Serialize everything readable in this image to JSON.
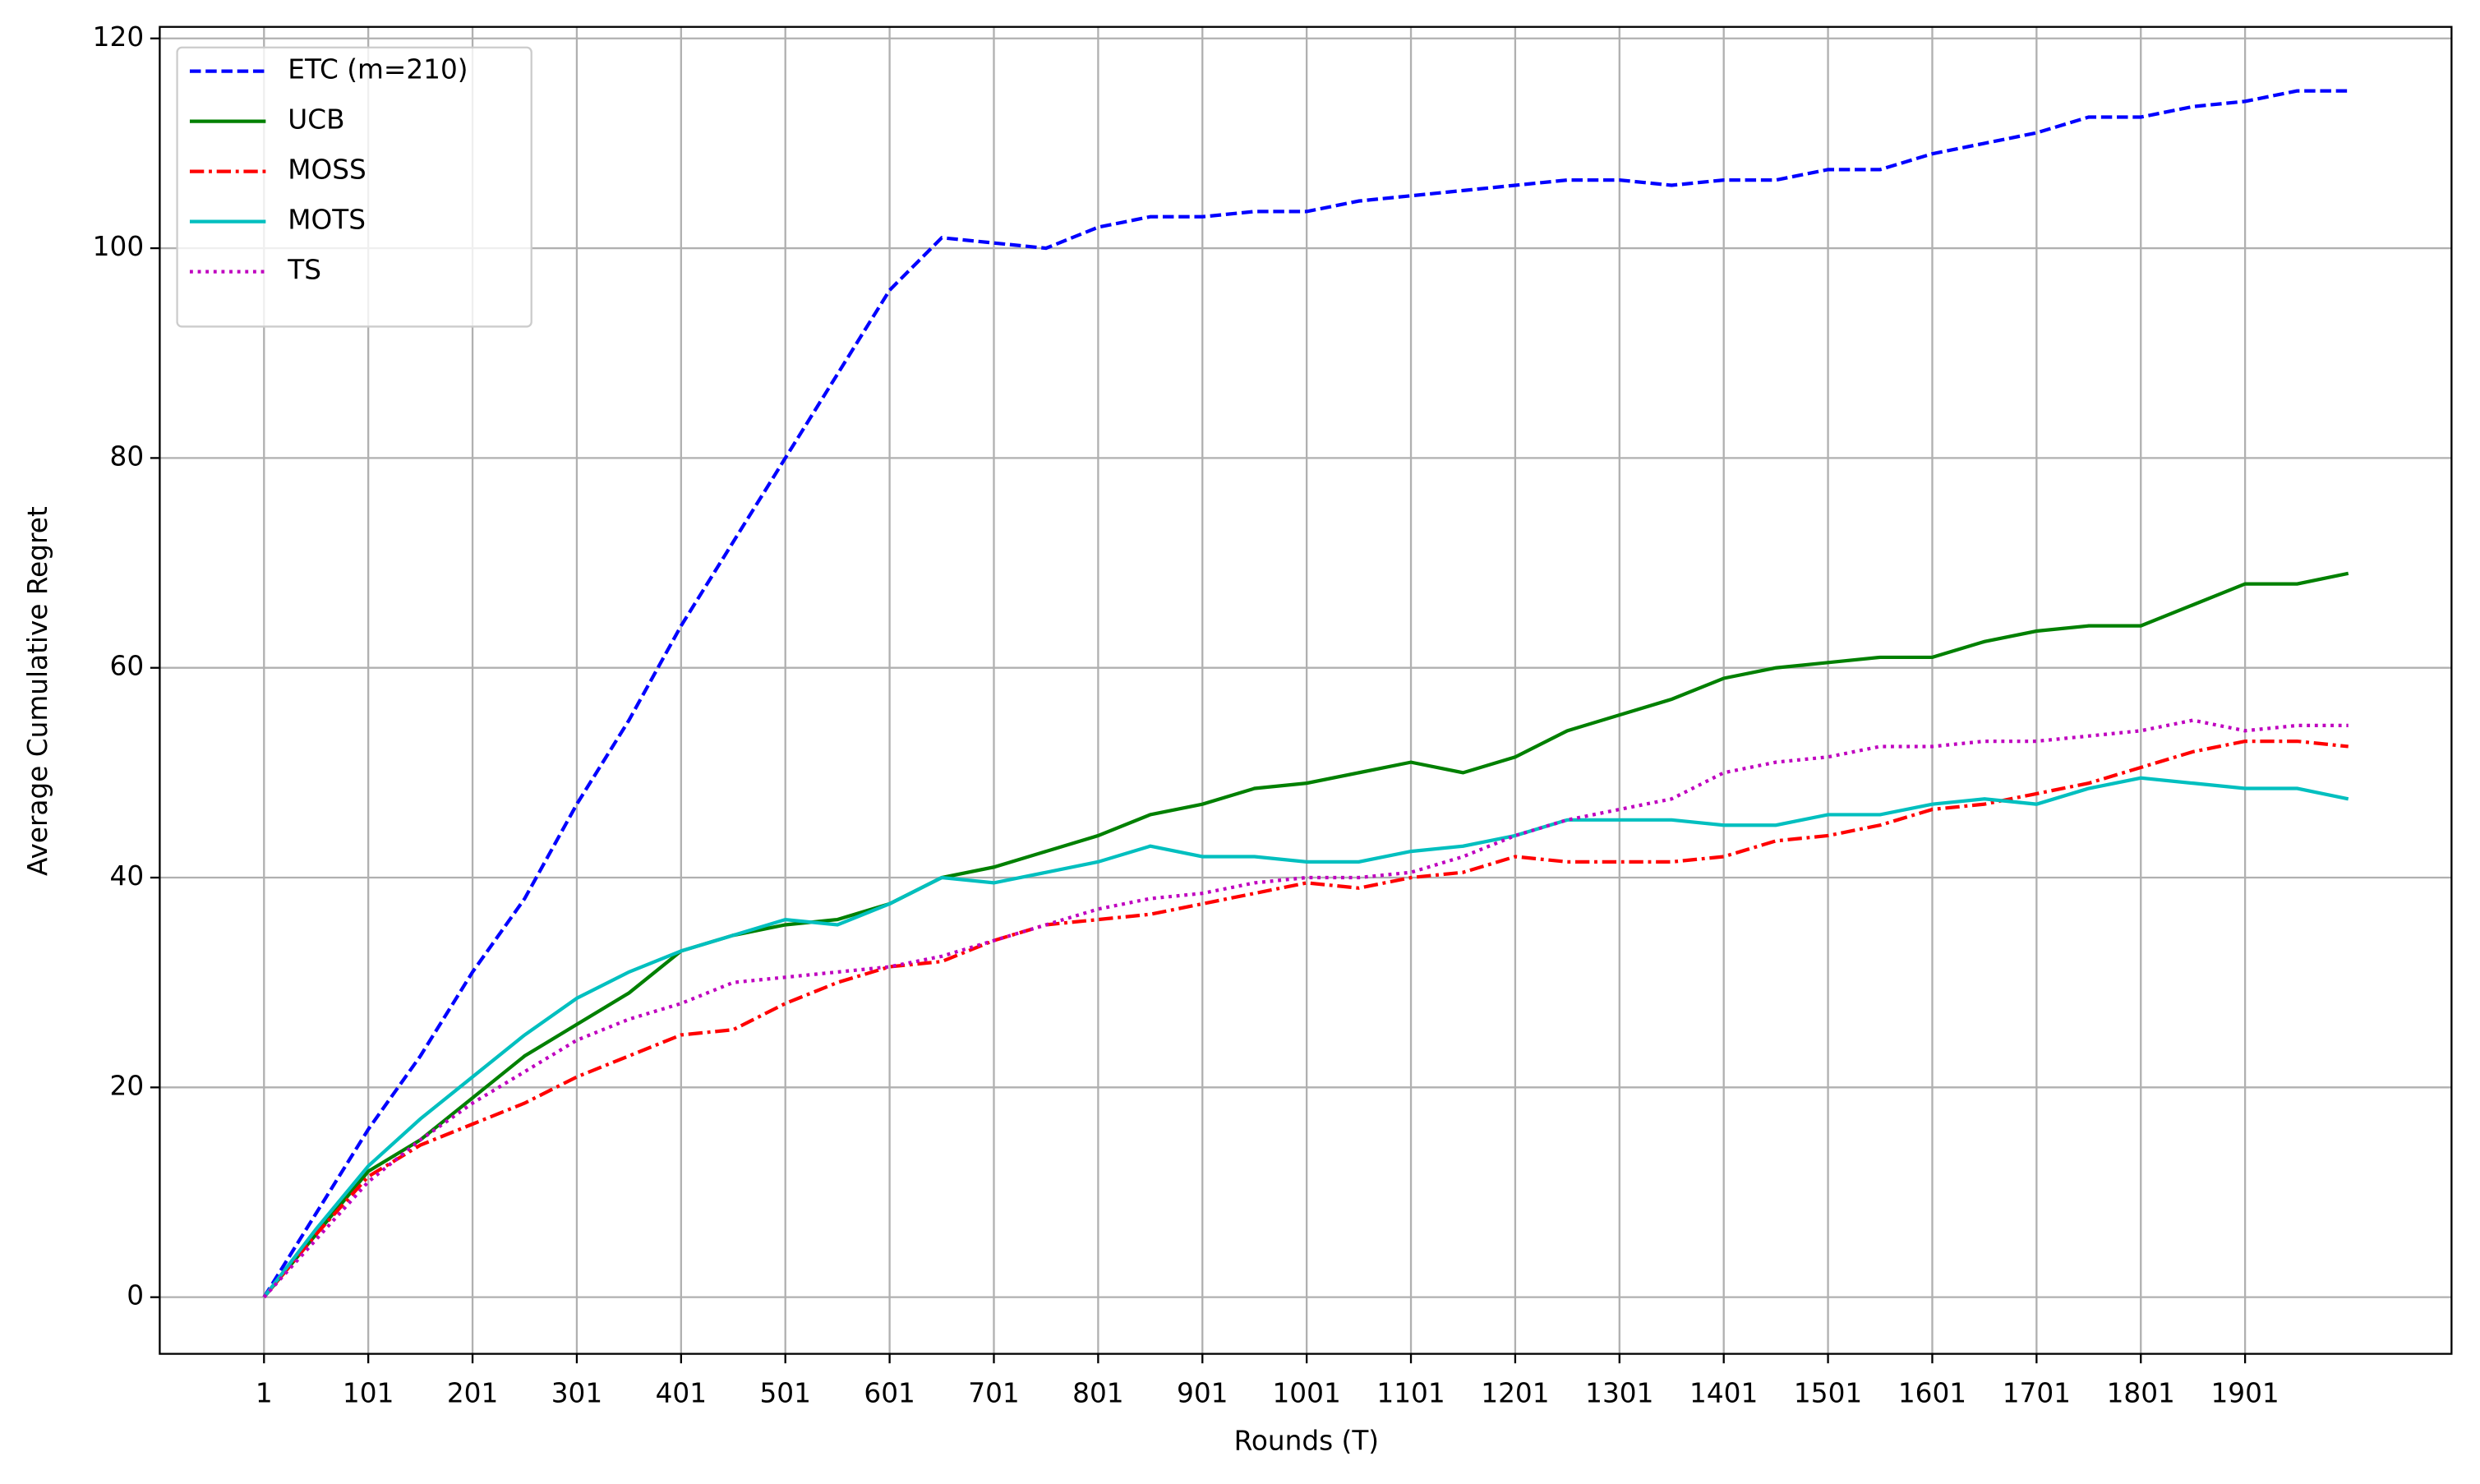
{
  "chart_data": {
    "type": "line",
    "xlabel": "Rounds (T)",
    "ylabel": "Average Cumulative Regret",
    "x": [
      1,
      51,
      101,
      151,
      201,
      251,
      301,
      351,
      401,
      451,
      501,
      551,
      601,
      651,
      701,
      751,
      801,
      851,
      901,
      951,
      1001,
      1051,
      1101,
      1151,
      1201,
      1251,
      1301,
      1351,
      1401,
      1451,
      1501,
      1551,
      1601,
      1651,
      1701,
      1751,
      1801,
      1851,
      1901,
      1951,
      2000
    ],
    "series": [
      {
        "name": "ETC (m=210)",
        "color": "#0000ff",
        "linestyle": "dashed",
        "values": [
          0,
          8,
          16,
          23,
          31,
          38,
          47,
          55,
          64,
          72,
          80,
          88,
          96,
          101,
          100.5,
          100,
          102,
          103,
          103,
          103.5,
          103.5,
          104.5,
          105,
          105.5,
          106,
          106.5,
          106.5,
          106,
          106.5,
          106.5,
          107.5,
          107.5,
          109,
          110,
          111,
          112.5,
          112.5,
          113.5,
          114,
          115,
          115
        ]
      },
      {
        "name": "UCB",
        "color": "#008000",
        "linestyle": "solid",
        "values": [
          0,
          6,
          12,
          15,
          19,
          23,
          26,
          29,
          33,
          34.5,
          35.5,
          36,
          37.5,
          40,
          41,
          42.5,
          44,
          46,
          47,
          48.5,
          49,
          50,
          51,
          50,
          51.5,
          54,
          55.5,
          57,
          59,
          60,
          60.5,
          61,
          61,
          62.5,
          63.5,
          64,
          64,
          66,
          68,
          68,
          69
        ]
      },
      {
        "name": "MOSS",
        "color": "#ff0000",
        "linestyle": "dashdot",
        "values": [
          0,
          6,
          11.5,
          14.5,
          16.5,
          18.5,
          21,
          23,
          25,
          25.5,
          28,
          30,
          31.5,
          32,
          34,
          35.5,
          36,
          36.5,
          37.5,
          38.5,
          39.5,
          39,
          40,
          40.5,
          42,
          41.5,
          41.5,
          41.5,
          42,
          43.5,
          44,
          45,
          46.5,
          47,
          48,
          49,
          50.5,
          52,
          53,
          53,
          52.5
        ]
      },
      {
        "name": "MOTS",
        "color": "#00bfbf",
        "linestyle": "solid",
        "values": [
          0,
          6.5,
          12.5,
          17,
          21,
          25,
          28.5,
          31,
          33,
          34.5,
          36,
          35.5,
          37.5,
          40,
          39.5,
          40.5,
          41.5,
          43,
          42,
          42,
          41.5,
          41.5,
          42.5,
          43,
          44,
          45.5,
          45.5,
          45.5,
          45,
          45,
          46,
          46,
          47,
          47.5,
          47,
          48.5,
          49.5,
          49,
          48.5,
          48.5,
          47.5
        ]
      },
      {
        "name": "TS",
        "color": "#bf00bf",
        "linestyle": "dotted",
        "values": [
          0,
          5.5,
          11,
          15,
          18.5,
          21.5,
          24.5,
          26.5,
          28,
          30,
          30.5,
          31,
          31.5,
          32.5,
          34,
          35.5,
          37,
          38,
          38.5,
          39.5,
          40,
          40,
          40.5,
          42,
          44,
          45.5,
          46.5,
          47.5,
          50,
          51,
          51.5,
          52.5,
          52.5,
          53,
          53,
          53.5,
          54,
          55,
          54,
          54.5,
          54.5
        ]
      }
    ],
    "xlim": [
      -99,
      2099
    ],
    "xticks": [
      1,
      101,
      201,
      301,
      401,
      501,
      601,
      701,
      801,
      901,
      1001,
      1101,
      1201,
      1301,
      1401,
      1501,
      1601,
      1701,
      1801,
      1901
    ],
    "ylim": [
      -5.4,
      121.1
    ],
    "yticks": [
      0,
      20,
      40,
      60,
      80,
      100,
      120
    ],
    "grid": true,
    "legend": "upper left"
  }
}
